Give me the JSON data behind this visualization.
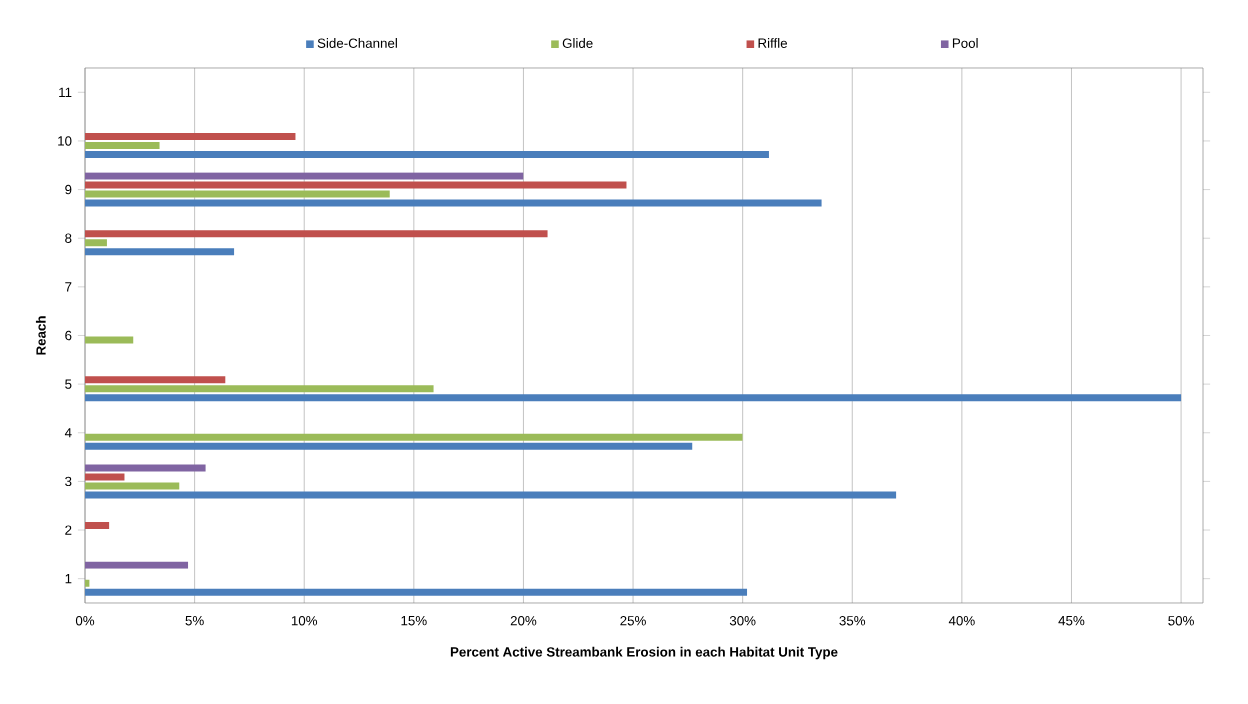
{
  "chart_data": {
    "type": "bar",
    "orientation": "horizontal",
    "xlabel": "Percent Active Streambank Erosion in each Habitat Unit Type",
    "ylabel": "Reach",
    "categories": [
      "11",
      "10",
      "9",
      "8",
      "7",
      "6",
      "5",
      "4",
      "3",
      "2",
      "1"
    ],
    "series": [
      {
        "name": "Side-Channel",
        "color": "#4a7ebb",
        "values": [
          null,
          31.2,
          33.6,
          6.8,
          null,
          null,
          50.0,
          27.7,
          37.0,
          null,
          30.2
        ]
      },
      {
        "name": "Glide",
        "color": "#9bbb59",
        "values": [
          null,
          3.4,
          13.9,
          1.0,
          null,
          2.2,
          15.9,
          30.0,
          4.3,
          null,
          0.2
        ]
      },
      {
        "name": "Riffle",
        "color": "#c0504d",
        "values": [
          null,
          9.6,
          24.7,
          21.1,
          null,
          null,
          6.4,
          null,
          1.8,
          1.1,
          null
        ]
      },
      {
        "name": "Pool",
        "color": "#8064a2",
        "values": [
          null,
          null,
          20.0,
          null,
          null,
          null,
          null,
          null,
          5.5,
          null,
          4.7
        ]
      }
    ],
    "xlim": [
      0,
      51
    ],
    "xticks": [
      {
        "value": 0,
        "label": "0%"
      },
      {
        "value": 5,
        "label": "5%"
      },
      {
        "value": 10,
        "label": "10%"
      },
      {
        "value": 15,
        "label": "15%"
      },
      {
        "value": 20,
        "label": "20%"
      },
      {
        "value": 25,
        "label": "25%"
      },
      {
        "value": 30,
        "label": "30%"
      },
      {
        "value": 35,
        "label": "35%"
      },
      {
        "value": 40,
        "label": "40%"
      },
      {
        "value": 45,
        "label": "45%"
      },
      {
        "value": 50,
        "label": "50%"
      }
    ],
    "grid": "x",
    "legend": "top"
  }
}
